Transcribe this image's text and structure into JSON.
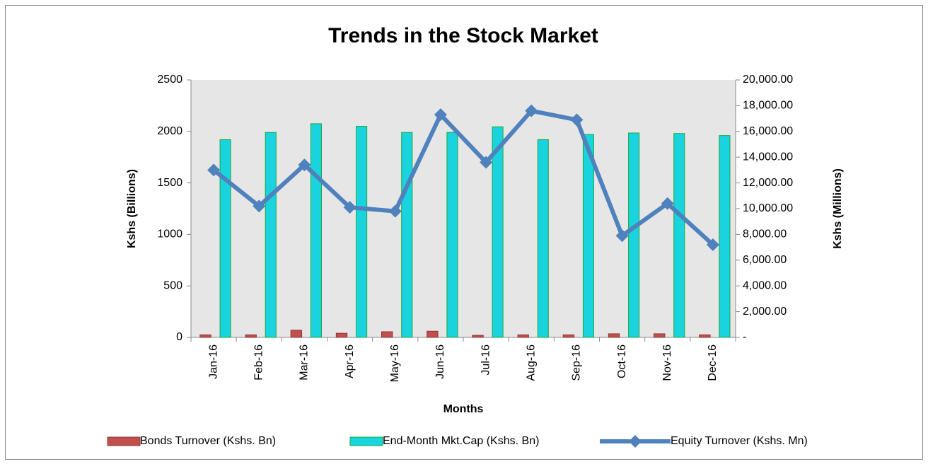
{
  "chart_data": {
    "type": "bar_line",
    "title": "Trends in the Stock Market",
    "x_label": "Months",
    "y_label": "Kshs (Billions)",
    "y2_label": "Kshs (Millions)",
    "categories": [
      "Jan-16",
      "Feb-16",
      "Mar-16",
      "Apr-16",
      "May-16",
      "Jun-16",
      "Jul-16",
      "Aug-16",
      "Sep-16",
      "Oct-16",
      "Nov-16",
      "Dec-16"
    ],
    "series": [
      {
        "name": "Bonds Turnover (Kshs. Bn)",
        "type": "bar",
        "color": "#c0504d",
        "values": [
          25,
          25,
          70,
          40,
          55,
          60,
          20,
          25,
          25,
          35,
          35,
          25
        ]
      },
      {
        "name": "End-Month Mkt.Cap (Kshs. Bn)",
        "type": "bar",
        "color": "#19d3de",
        "values": [
          1920,
          1990,
          2075,
          2050,
          1990,
          1990,
          2045,
          1920,
          1970,
          1985,
          1980,
          1960
        ]
      },
      {
        "name": "Equity Turnover (Kshs. Mn)",
        "type": "line",
        "axis": "y2",
        "color": "#4f81bd",
        "values": [
          13000,
          10200,
          13400,
          10100,
          9800,
          17300,
          13600,
          17600,
          16900,
          7900,
          10400,
          7200
        ]
      }
    ],
    "ylim": [
      0,
      2500
    ],
    "yticks": [
      0,
      500,
      1000,
      1500,
      2000,
      2500
    ],
    "y2lim": [
      0,
      20000
    ],
    "y2ticks": [
      {
        "value": 0,
        "label": "-"
      },
      {
        "value": 2000,
        "label": "2,000.00"
      },
      {
        "value": 4000,
        "label": "4,000.00"
      },
      {
        "value": 6000,
        "label": "6,000.00"
      },
      {
        "value": 8000,
        "label": "8,000.00"
      },
      {
        "value": 10000,
        "label": "10,000.00"
      },
      {
        "value": 12000,
        "label": "12,000.00"
      },
      {
        "value": 14000,
        "label": "14,000.00"
      },
      {
        "value": 16000,
        "label": "16,000.00"
      },
      {
        "value": 18000,
        "label": "18,000.00"
      },
      {
        "value": 20000,
        "label": "20,000.00"
      }
    ],
    "grid": false,
    "legend": "bottom"
  }
}
